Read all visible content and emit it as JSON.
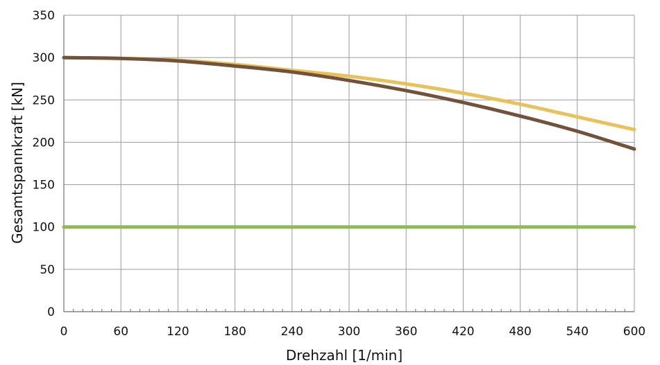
{
  "chart_data": {
    "type": "line",
    "title": "",
    "xlabel": "Drehzahl [1/min]",
    "ylabel": "Gesamtspannkraft [kN]",
    "xlim": [
      0,
      600
    ],
    "ylim": [
      0,
      350
    ],
    "xticks": [
      0,
      60,
      120,
      180,
      240,
      300,
      360,
      420,
      480,
      540,
      600
    ],
    "yticks": [
      0,
      50,
      100,
      150,
      200,
      250,
      300,
      350
    ],
    "grid": true,
    "legend": "none",
    "series": [
      {
        "color": "#e8c15a",
        "x": [
          0,
          60,
          120,
          180,
          240,
          300,
          360,
          420,
          480,
          540,
          600
        ],
        "y": [
          300,
          299,
          297,
          292,
          285,
          278,
          269,
          258,
          245,
          230,
          215
        ]
      },
      {
        "color": "#73523c",
        "x": [
          0,
          60,
          120,
          180,
          240,
          300,
          360,
          420,
          480,
          540,
          600
        ],
        "y": [
          300,
          299,
          296,
          290,
          283,
          273,
          261,
          247,
          231,
          213,
          192
        ]
      },
      {
        "color": "#8dbd4f",
        "x": [
          0,
          600
        ],
        "y": [
          100,
          100
        ]
      }
    ]
  }
}
